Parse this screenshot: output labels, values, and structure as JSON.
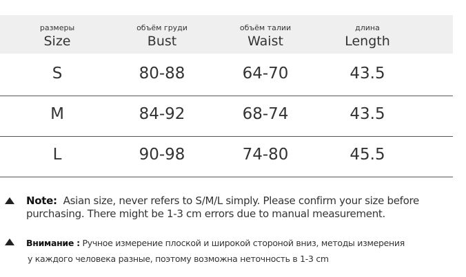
{
  "table": {
    "header": [
      {
        "ru": "размеры",
        "en": "Size"
      },
      {
        "ru": "объём груди",
        "en": "Bust"
      },
      {
        "ru": "объём талии",
        "en": "Waist"
      },
      {
        "ru": "длина",
        "en": "Length"
      }
    ],
    "rows": [
      [
        "S",
        "80-88",
        "64-70",
        "43.5"
      ],
      [
        "M",
        "84-92",
        "68-74",
        "43.5"
      ],
      [
        "L",
        "90-98",
        "74-80",
        "45.5"
      ]
    ]
  },
  "notes": [
    {
      "label": "Note:",
      "lines": [
        "Asian size, never refers to S/M/L simply. Please confirm your size before",
        "purchasing. There might be 1-3 cm errors due to manual measurement."
      ]
    },
    {
      "label": "Внимание :",
      "lines": [
        "Ручное измерение плоской и широкой стороной вниз, методы измерения",
        "у каждого человека разные, поэтому возможна неточность в 1-3 cm"
      ]
    }
  ]
}
